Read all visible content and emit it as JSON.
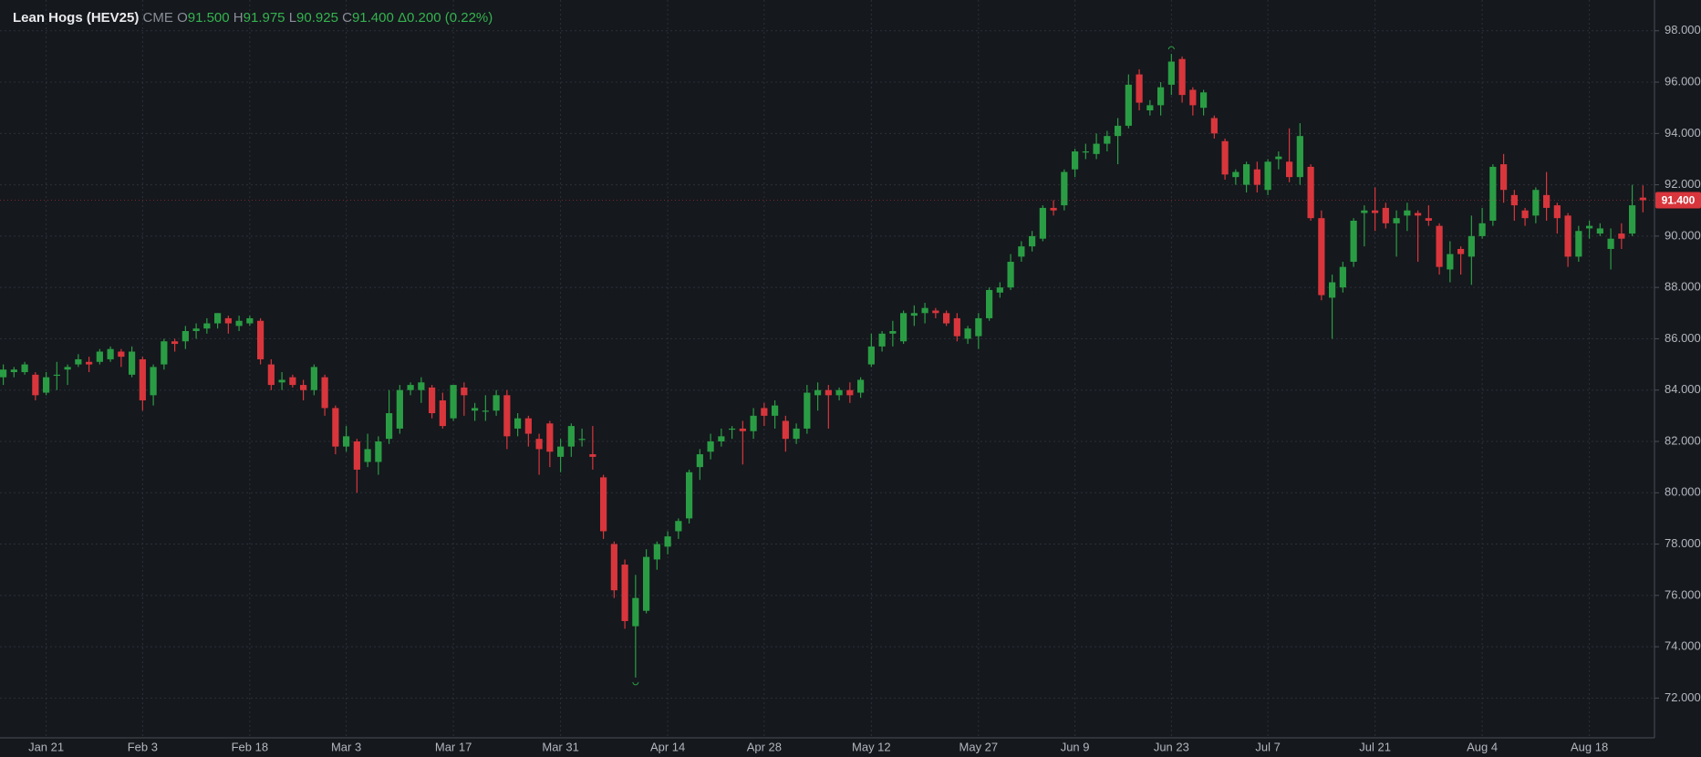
{
  "header": {
    "title": "Lean Hogs (HEV25)",
    "exchange": "CME",
    "fields": [
      {
        "label": "O",
        "value": "91.500"
      },
      {
        "label": "H",
        "value": "91.975"
      },
      {
        "label": "L",
        "value": "90.925"
      },
      {
        "label": "C",
        "value": "91.400"
      }
    ],
    "change": "Δ0.200 (0.22%)"
  },
  "chart_data": {
    "type": "candlestick",
    "up_color": "#2a9d44",
    "down_color": "#d8363c",
    "grid": true,
    "ylim": [
      70.45,
      99.2
    ],
    "yticks": [
      {
        "value": 72,
        "label": "72.000"
      },
      {
        "value": 74,
        "label": "74.000"
      },
      {
        "value": 76,
        "label": "76.000"
      },
      {
        "value": 78,
        "label": "78.000"
      },
      {
        "value": 80,
        "label": "80.000"
      },
      {
        "value": 82,
        "label": "82.000"
      },
      {
        "value": 84,
        "label": "84.000"
      },
      {
        "value": 86,
        "label": "86.000"
      },
      {
        "value": 88,
        "label": "88.000"
      },
      {
        "value": 90,
        "label": "90.000"
      },
      {
        "value": 92,
        "label": "92.000"
      },
      {
        "value": 94,
        "label": "94.000"
      },
      {
        "value": 96,
        "label": "96.000"
      },
      {
        "value": 98,
        "label": "98.000"
      }
    ],
    "last_price": {
      "value": 91.4,
      "label": "91.400"
    },
    "categories": [
      null,
      null,
      null,
      null,
      "Jan 21",
      null,
      null,
      null,
      null,
      null,
      null,
      null,
      null,
      "Feb 3",
      null,
      null,
      null,
      null,
      null,
      null,
      null,
      null,
      null,
      "Feb 18",
      null,
      null,
      null,
      null,
      null,
      null,
      null,
      null,
      "Mar 3",
      null,
      null,
      null,
      null,
      null,
      null,
      null,
      null,
      null,
      "Mar 17",
      null,
      null,
      null,
      null,
      null,
      null,
      null,
      null,
      null,
      "Mar 31",
      null,
      null,
      null,
      null,
      null,
      null,
      null,
      null,
      null,
      "Apr 14",
      null,
      null,
      null,
      null,
      null,
      null,
      null,
      null,
      "Apr 28",
      null,
      null,
      null,
      null,
      null,
      null,
      null,
      null,
      null,
      "May 12",
      null,
      null,
      null,
      null,
      null,
      null,
      null,
      null,
      null,
      "May 27",
      null,
      null,
      null,
      null,
      null,
      null,
      null,
      null,
      "Jun 9",
      null,
      null,
      null,
      null,
      null,
      null,
      null,
      null,
      "Jun 23",
      null,
      null,
      null,
      null,
      null,
      null,
      null,
      null,
      "Jul 7",
      null,
      null,
      null,
      null,
      null,
      null,
      null,
      null,
      null,
      "Jul 21",
      null,
      null,
      null,
      null,
      null,
      null,
      null,
      null,
      null,
      "Aug 4",
      null,
      null,
      null,
      null,
      null,
      null,
      null,
      null,
      null,
      "Aug 18",
      null,
      null,
      null,
      null,
      null
    ],
    "open": [
      84.5,
      84.7,
      84.7,
      84.6,
      83.9,
      84.6,
      84.8,
      85.0,
      85.1,
      85.1,
      85.2,
      85.5,
      84.6,
      85.2,
      83.8,
      85.0,
      85.9,
      85.9,
      86.3,
      86.4,
      86.6,
      86.8,
      86.5,
      86.6,
      86.7,
      85.0,
      84.3,
      84.5,
      84.2,
      84.0,
      84.5,
      83.3,
      81.8,
      82.0,
      81.2,
      81.2,
      82.1,
      82.5,
      84.0,
      84.0,
      84.1,
      83.6,
      82.9,
      84.1,
      83.2,
      83.2,
      83.2,
      83.8,
      82.5,
      82.9,
      82.1,
      82.7,
      81.4,
      81.8,
      82.1,
      81.5,
      80.6,
      78.0,
      77.2,
      74.8,
      75.4,
      77.4,
      77.9,
      78.5,
      79.0,
      81.0,
      81.6,
      82.0,
      82.5,
      82.5,
      82.4,
      83.3,
      83.0,
      82.8,
      82.1,
      82.5,
      83.8,
      84.0,
      83.8,
      84.0,
      83.9,
      85.0,
      85.7,
      86.2,
      85.9,
      86.9,
      87.0,
      87.1,
      87.0,
      86.8,
      86.0,
      86.1,
      86.8,
      87.8,
      88.0,
      89.2,
      89.6,
      89.9,
      91.1,
      91.2,
      92.6,
      93.3,
      93.2,
      93.6,
      93.9,
      94.3,
      96.3,
      94.9,
      95.1,
      95.9,
      96.9,
      95.7,
      95.0,
      94.6,
      93.7,
      92.3,
      92.0,
      92.6,
      91.8,
      93.0,
      92.9,
      92.3,
      92.7,
      90.7,
      87.6,
      88.0,
      89.0,
      90.9,
      91.0,
      91.1,
      90.5,
      90.8,
      90.9,
      90.7,
      90.4,
      88.7,
      89.5,
      89.2,
      90.0,
      90.6,
      92.8,
      91.6,
      91.0,
      90.8,
      91.6,
      91.2,
      90.8,
      89.2,
      90.3,
      90.1,
      89.5,
      90.1,
      90.1,
      91.5
    ],
    "high": [
      85.0,
      84.9,
      85.1,
      84.7,
      84.7,
      85.1,
      85.0,
      85.4,
      85.3,
      85.6,
      85.7,
      85.6,
      85.7,
      85.3,
      85.0,
      86.0,
      86.0,
      86.5,
      86.6,
      86.8,
      87.0,
      86.9,
      86.9,
      86.9,
      86.8,
      85.2,
      84.7,
      84.6,
      84.4,
      85.0,
      84.6,
      83.4,
      82.6,
      82.1,
      82.3,
      82.2,
      84.0,
      84.2,
      84.3,
      84.5,
      84.2,
      83.9,
      84.2,
      84.3,
      83.5,
      83.8,
      84.0,
      84.0,
      83.1,
      83.0,
      82.3,
      82.8,
      82.1,
      82.7,
      82.5,
      82.6,
      80.7,
      78.1,
      77.4,
      76.8,
      77.8,
      78.1,
      78.5,
      79.0,
      80.9,
      81.7,
      82.3,
      82.5,
      82.6,
      82.8,
      83.3,
      83.5,
      83.6,
      83.0,
      82.7,
      84.2,
      84.3,
      84.2,
      84.1,
      84.3,
      84.5,
      86.2,
      86.3,
      86.7,
      87.1,
      87.3,
      87.4,
      87.2,
      87.1,
      87.0,
      86.5,
      87.0,
      88.0,
      88.2,
      89.3,
      89.8,
      90.2,
      91.2,
      91.4,
      92.6,
      93.4,
      93.6,
      94.0,
      94.1,
      94.6,
      96.3,
      96.5,
      95.3,
      96.0,
      97.1,
      97.0,
      95.8,
      95.7,
      94.7,
      93.8,
      92.6,
      92.9,
      92.9,
      93.0,
      93.3,
      94.2,
      94.4,
      92.8,
      91.0,
      88.5,
      89.0,
      90.7,
      91.2,
      91.9,
      91.3,
      91.0,
      91.3,
      91.0,
      91.2,
      90.5,
      89.8,
      89.6,
      90.8,
      91.1,
      92.8,
      93.2,
      91.8,
      91.1,
      91.9,
      92.5,
      91.3,
      90.9,
      90.4,
      90.6,
      90.5,
      90.3,
      90.5,
      92.0,
      91.975
    ],
    "low": [
      84.2,
      84.5,
      84.6,
      83.6,
      83.8,
      84.0,
      84.2,
      84.9,
      84.7,
      85.0,
      85.1,
      84.9,
      84.5,
      83.2,
      83.4,
      84.8,
      85.5,
      85.6,
      86.0,
      86.2,
      86.4,
      86.2,
      86.3,
      86.5,
      85.0,
      84.0,
      84.0,
      84.1,
      83.6,
      83.8,
      83.0,
      81.5,
      81.6,
      80.0,
      81.0,
      80.7,
      81.9,
      82.3,
      83.8,
      83.5,
      82.9,
      82.5,
      82.8,
      83.0,
      82.8,
      82.8,
      83.0,
      81.7,
      82.2,
      81.8,
      80.7,
      81.0,
      80.8,
      81.4,
      81.8,
      80.9,
      78.2,
      75.9,
      74.7,
      72.8,
      75.3,
      77.0,
      77.6,
      78.2,
      78.8,
      80.5,
      81.3,
      81.8,
      82.1,
      81.1,
      82.1,
      82.6,
      82.5,
      81.6,
      81.9,
      82.3,
      83.2,
      82.5,
      83.6,
      83.5,
      83.7,
      84.9,
      85.5,
      85.7,
      85.8,
      86.5,
      86.6,
      86.8,
      86.5,
      85.9,
      85.8,
      85.6,
      86.7,
      87.6,
      87.9,
      89.0,
      89.4,
      89.8,
      90.8,
      91.0,
      92.3,
      93.0,
      93.0,
      93.3,
      92.8,
      94.2,
      94.9,
      94.7,
      94.7,
      95.5,
      95.2,
      94.7,
      94.7,
      93.8,
      92.2,
      92.0,
      91.7,
      91.7,
      91.6,
      92.6,
      92.1,
      92.0,
      90.6,
      87.5,
      86.0,
      87.8,
      88.8,
      89.6,
      90.2,
      90.3,
      89.2,
      90.2,
      89.0,
      90.4,
      88.5,
      88.2,
      88.5,
      88.1,
      89.9,
      90.4,
      91.3,
      90.6,
      90.4,
      90.5,
      90.6,
      90.1,
      88.8,
      89.0,
      89.9,
      90.0,
      88.7,
      89.5,
      90.0,
      90.925
    ],
    "close": [
      84.8,
      84.8,
      85.0,
      83.8,
      84.5,
      84.6,
      84.9,
      85.2,
      85.0,
      85.5,
      85.6,
      85.3,
      85.5,
      83.6,
      84.9,
      85.9,
      85.8,
      86.3,
      86.4,
      86.6,
      87.0,
      86.6,
      86.7,
      86.8,
      85.2,
      84.2,
      84.4,
      84.2,
      84.0,
      84.9,
      83.3,
      81.8,
      82.2,
      80.9,
      81.7,
      82.0,
      83.1,
      84.0,
      84.2,
      84.3,
      83.1,
      82.6,
      84.2,
      83.8,
      83.3,
      83.2,
      83.8,
      82.2,
      82.9,
      82.3,
      81.7,
      81.6,
      81.8,
      82.6,
      82.1,
      81.4,
      78.5,
      76.2,
      75.0,
      75.9,
      77.5,
      78.0,
      78.3,
      78.9,
      80.8,
      81.5,
      82.0,
      82.2,
      82.5,
      82.4,
      83.0,
      83.0,
      83.4,
      82.1,
      82.5,
      83.9,
      84.0,
      83.8,
      84.0,
      83.8,
      84.4,
      85.7,
      86.2,
      86.3,
      87.0,
      87.0,
      87.2,
      87.0,
      86.6,
      86.1,
      86.4,
      86.8,
      87.9,
      88.0,
      89.0,
      89.6,
      90.0,
      91.1,
      91.0,
      92.5,
      93.3,
      93.3,
      93.6,
      93.9,
      94.3,
      95.9,
      95.2,
      95.1,
      95.8,
      96.8,
      95.5,
      95.1,
      95.6,
      94.0,
      92.4,
      92.5,
      92.8,
      92.0,
      92.9,
      93.1,
      92.3,
      93.9,
      90.7,
      87.7,
      88.2,
      88.8,
      90.6,
      91.0,
      90.9,
      90.5,
      90.7,
      91.0,
      90.8,
      90.6,
      88.8,
      89.3,
      89.3,
      90.0,
      90.5,
      92.7,
      91.8,
      91.2,
      90.7,
      91.8,
      91.1,
      90.7,
      89.2,
      90.2,
      90.4,
      90.3,
      89.9,
      89.9,
      91.2,
      91.4
    ]
  }
}
